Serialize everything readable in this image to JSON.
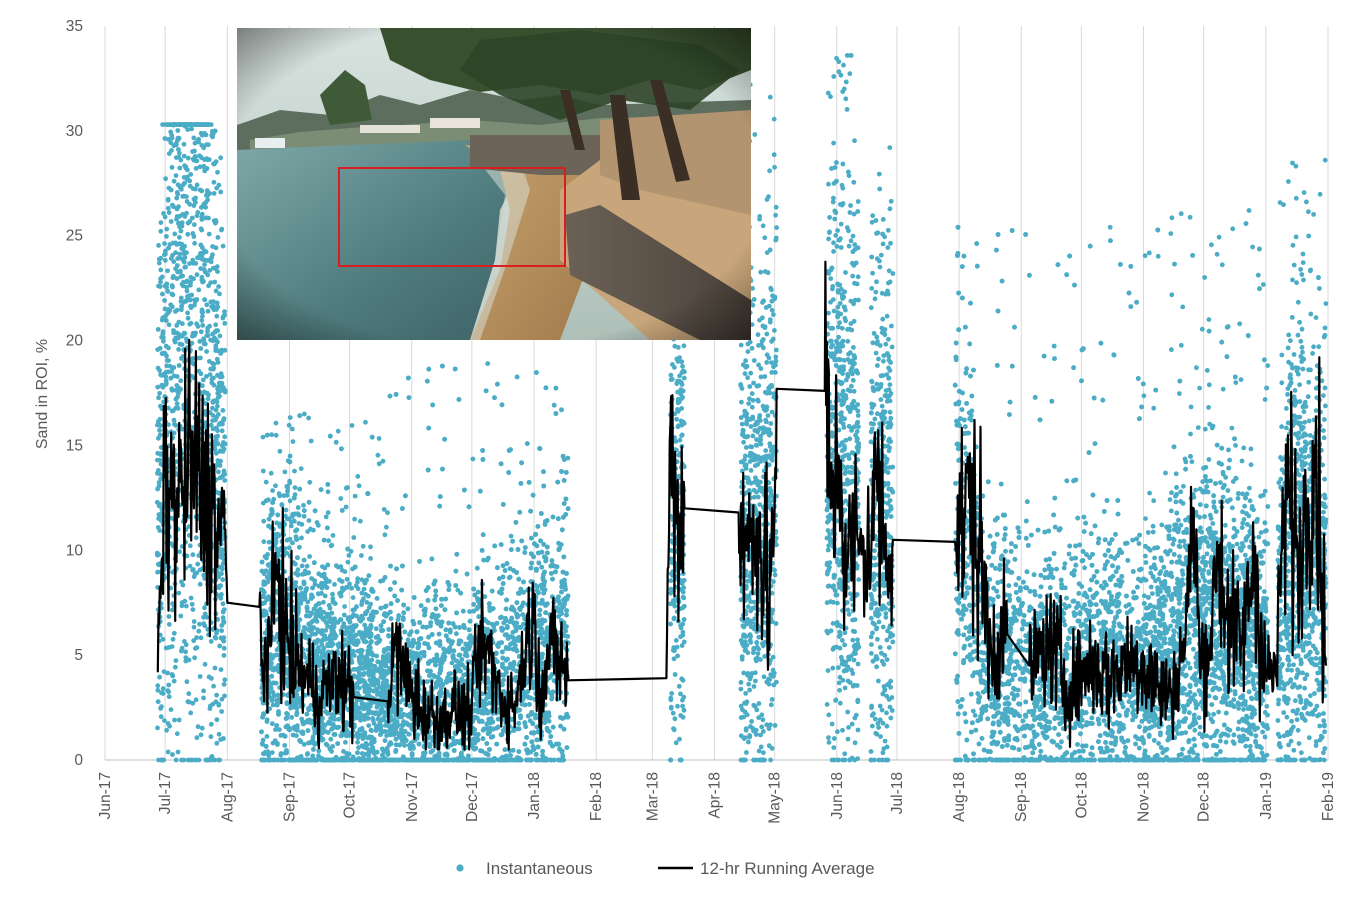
{
  "chart_data": {
    "type": "scatter",
    "ylabel": "Sand in ROI, %",
    "xlabel": "",
    "title": "",
    "ylim": [
      0,
      35
    ],
    "yticks": [
      0,
      5,
      10,
      15,
      20,
      25,
      30,
      35
    ],
    "xlim": [
      "2017-06-01",
      "2019-02-01"
    ],
    "xtick_labels": [
      "Jun-17",
      "Jul-17",
      "Aug-17",
      "Sep-17",
      "Oct-17",
      "Nov-17",
      "Dec-17",
      "Jan-18",
      "Feb-18",
      "Mar-18",
      "Apr-18",
      "May-18",
      "Jun-18",
      "Jul-18",
      "Aug-18",
      "Sep-18",
      "Oct-18",
      "Nov-18",
      "Dec-18",
      "Jan-19",
      "Feb-19"
    ],
    "grid": "vertical",
    "legend_position": "bottom",
    "inset_image": "beach-photo-with-red-roi-box",
    "colors": {
      "instantaneous": "#4bacc6",
      "running_average": "#000000",
      "grid": "#d9d9d9",
      "roi_box": "#d62020"
    },
    "series": [
      {
        "name": "Instantaneous",
        "kind": "scatter",
        "segments": [
          {
            "start": "2017-06-27",
            "end": "2017-07-31",
            "typical": [
              [
                0,
                11
              ],
              [
                5,
                16
              ],
              [
                12,
                22
              ],
              [
                18,
                20
              ],
              [
                25,
                19
              ],
              [
                32,
                12
              ]
            ],
            "peak": 30.3
          },
          {
            "start": "2017-08-18",
            "end": "2017-10-20",
            "typical": [
              [
                0,
                5
              ],
              [
                10,
                7
              ],
              [
                20,
                5
              ],
              [
                30,
                4
              ],
              [
                45,
                4
              ],
              [
                62,
                3
              ]
            ],
            "peak": 16.5
          },
          {
            "start": "2017-10-20",
            "end": "2018-01-18",
            "typical": [
              [
                0,
                3
              ],
              [
                20,
                3
              ],
              [
                40,
                3
              ],
              [
                55,
                4
              ],
              [
                75,
                5
              ],
              [
                90,
                6
              ]
            ],
            "peak": 18.9
          },
          {
            "start": "2018-03-10",
            "end": "2018-03-17",
            "typical": [
              [
                0,
                12
              ],
              [
                7,
                12
              ]
            ],
            "peak": 22
          },
          {
            "start": "2018-04-14",
            "end": "2018-05-02",
            "typical": [
              [
                0,
                11
              ],
              [
                8,
                10
              ],
              [
                18,
                14
              ]
            ],
            "peak": 32.2
          },
          {
            "start": "2018-05-27",
            "end": "2018-06-12",
            "typical": [
              [
                0,
                14
              ],
              [
                8,
                15
              ],
              [
                16,
                12
              ]
            ],
            "peak": 33.6
          },
          {
            "start": "2018-06-18",
            "end": "2018-06-29",
            "typical": [
              [
                0,
                11
              ],
              [
                11,
                12
              ]
            ],
            "peak": 29.2
          },
          {
            "start": "2018-07-30",
            "end": "2018-11-01",
            "typical": [
              [
                0,
                12
              ],
              [
                6,
                10
              ],
              [
                15,
                5
              ],
              [
                40,
                4
              ],
              [
                70,
                5
              ],
              [
                93,
                4
              ]
            ],
            "peak": 25.4
          },
          {
            "start": "2018-11-01",
            "end": "2019-01-02",
            "typical": [
              [
                0,
                4
              ],
              [
                20,
                6
              ],
              [
                35,
                7
              ],
              [
                50,
                6
              ],
              [
                62,
                5
              ]
            ],
            "peak": 26.2
          },
          {
            "start": "2019-01-07",
            "end": "2019-01-31",
            "typical": [
              [
                0,
                6
              ],
              [
                8,
                11
              ],
              [
                16,
                10
              ],
              [
                24,
                9
              ]
            ],
            "peak": 28.6
          }
        ]
      },
      {
        "name": "12-hr Running Average",
        "kind": "line",
        "points": [
          [
            "2017-06-27",
            4.2
          ],
          [
            "2017-06-29",
            8.5
          ],
          [
            "2017-07-01",
            13.5
          ],
          [
            "2017-07-05",
            12.0
          ],
          [
            "2017-07-10",
            13.0
          ],
          [
            "2017-07-15",
            14.5
          ],
          [
            "2017-07-20",
            12.5
          ],
          [
            "2017-07-25",
            12.0
          ],
          [
            "2017-07-28",
            10.5
          ],
          [
            "2017-07-31",
            11.0
          ],
          [
            "2017-08-01",
            7.5
          ],
          [
            "2017-08-17",
            7.3
          ],
          [
            "2017-08-18",
            4.5
          ],
          [
            "2017-08-22",
            5.5
          ],
          [
            "2017-08-26",
            9.3
          ],
          [
            "2017-08-30",
            6.0
          ],
          [
            "2017-09-05",
            4.5
          ],
          [
            "2017-09-12",
            3.5
          ],
          [
            "2017-09-16",
            3.0
          ],
          [
            "2017-09-25",
            4.0
          ],
          [
            "2017-10-03",
            3.0
          ],
          [
            "2017-10-20",
            2.8
          ],
          [
            "2017-10-24",
            5.5
          ],
          [
            "2017-10-28",
            4.0
          ],
          [
            "2017-11-05",
            2.5
          ],
          [
            "2017-11-15",
            1.8
          ],
          [
            "2017-11-22",
            2.5
          ],
          [
            "2017-11-30",
            2.0
          ],
          [
            "2017-12-03",
            4.5
          ],
          [
            "2017-12-08",
            5.5
          ],
          [
            "2017-12-15",
            3.0
          ],
          [
            "2017-12-22",
            2.5
          ],
          [
            "2017-12-28",
            5.5
          ],
          [
            "2018-01-01",
            6.5
          ],
          [
            "2018-01-05",
            3.5
          ],
          [
            "2018-01-10",
            5.5
          ],
          [
            "2018-01-15",
            4.5
          ],
          [
            "2018-01-18",
            3.8
          ],
          [
            "2018-03-08",
            3.9
          ],
          [
            "2018-03-10",
            16.0
          ],
          [
            "2018-03-13",
            11.5
          ],
          [
            "2018-03-17",
            12.0
          ],
          [
            "2018-04-13",
            11.8
          ],
          [
            "2018-04-17",
            10.0
          ],
          [
            "2018-04-22",
            11.5
          ],
          [
            "2018-04-28",
            7.5
          ],
          [
            "2018-05-01",
            12.0
          ],
          [
            "2018-05-02",
            17.7
          ],
          [
            "2018-05-26",
            17.6
          ],
          [
            "2018-05-29",
            12.0
          ],
          [
            "2018-06-02",
            14.5
          ],
          [
            "2018-06-06",
            9.5
          ],
          [
            "2018-06-10",
            10.5
          ],
          [
            "2018-06-12",
            9.8
          ],
          [
            "2018-06-17",
            10.0
          ],
          [
            "2018-06-21",
            13.5
          ],
          [
            "2018-06-25",
            10.5
          ],
          [
            "2018-06-29",
            10.5
          ],
          [
            "2018-07-30",
            10.4
          ],
          [
            "2018-08-02",
            11.0
          ],
          [
            "2018-08-06",
            12.5
          ],
          [
            "2018-08-12",
            9.5
          ],
          [
            "2018-08-16",
            5.5
          ],
          [
            "2018-08-25",
            6.0
          ],
          [
            "2018-09-05",
            4.5
          ],
          [
            "2018-09-15",
            5.5
          ],
          [
            "2018-09-25",
            3.5
          ],
          [
            "2018-10-05",
            4.5
          ],
          [
            "2018-10-15",
            4.0
          ],
          [
            "2018-10-25",
            4.8
          ],
          [
            "2018-11-01",
            4.6
          ],
          [
            "2018-11-08",
            3.5
          ],
          [
            "2018-11-15",
            3.0
          ],
          [
            "2018-11-22",
            6.0
          ],
          [
            "2018-11-26",
            12.0
          ],
          [
            "2018-11-29",
            4.5
          ],
          [
            "2018-12-04",
            5.5
          ],
          [
            "2018-12-08",
            10.0
          ],
          [
            "2018-12-14",
            6.5
          ],
          [
            "2018-12-20",
            5.5
          ],
          [
            "2018-12-26",
            9.5
          ],
          [
            "2018-12-30",
            6.0
          ],
          [
            "2019-01-01",
            4.2
          ],
          [
            "2019-01-06",
            4.0
          ],
          [
            "2019-01-09",
            10.0
          ],
          [
            "2019-01-13",
            13.0
          ],
          [
            "2019-01-17",
            9.0
          ],
          [
            "2019-01-21",
            12.0
          ],
          [
            "2019-01-25",
            15.0
          ],
          [
            "2019-01-28",
            11.0
          ],
          [
            "2019-01-31",
            4.5
          ]
        ]
      }
    ]
  }
}
